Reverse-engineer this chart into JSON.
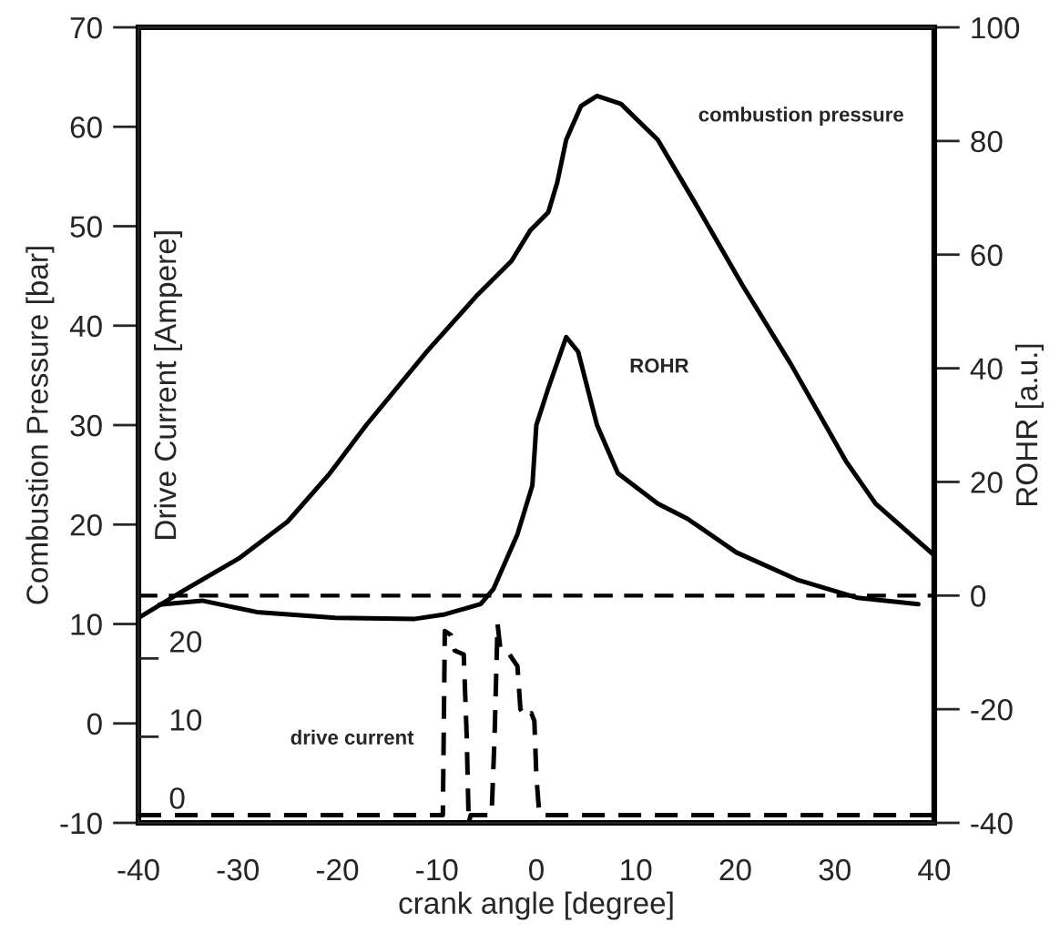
{
  "chart_data": {
    "type": "line",
    "xlabel": "crank angle [degree]",
    "ylabel": "Combustion Pressure [bar]",
    "y2label": "ROHR [a.u.]",
    "y3label": "Drive Current [Ampere]",
    "xlim": [
      -40,
      40
    ],
    "xticks": [
      -40,
      -30,
      -20,
      -10,
      0,
      10,
      20,
      30,
      40
    ],
    "ylim": [
      -10,
      70
    ],
    "yticks": [
      -10,
      0,
      10,
      20,
      30,
      40,
      50,
      60,
      70
    ],
    "y2lim": [
      -40,
      100
    ],
    "y2ticks": [
      -40,
      -20,
      0,
      20,
      40,
      60,
      80,
      100
    ],
    "y3lim": [
      -1,
      100.6
    ],
    "y3ticks": [
      0,
      10,
      20
    ],
    "grid": false,
    "legend": false,
    "marker": "none",
    "ref_lines": [
      {
        "axis": "y2",
        "value": 0,
        "line_style": "dashed",
        "color": "#000000"
      }
    ],
    "series": [
      {
        "name": "combustion pressure",
        "color": "#000000",
        "line_style": "solid",
        "x": [
          -40,
          -35.4,
          -29.9,
          -25.0,
          -20.8,
          -17.1,
          -11.0,
          -6.1,
          -2.5,
          -0.6,
          1.2,
          2.1,
          3.0,
          4.5,
          6.1,
          8.5,
          12.2,
          15.8,
          20.7,
          25.6,
          31.1,
          34.1,
          40
        ],
        "values": [
          10.6,
          13.4,
          16.6,
          20.3,
          25.1,
          30.0,
          37.4,
          42.9,
          46.5,
          49.6,
          51.4,
          54.4,
          58.7,
          62.1,
          63.1,
          62.3,
          58.7,
          52.6,
          44.1,
          36.1,
          26.4,
          22.1,
          16.9
        ]
      },
      {
        "name": "ROHR",
        "axis": "y2",
        "color": "#000000",
        "line_style": "solid",
        "x": [
          -37.9,
          -33.6,
          -28.1,
          -20.2,
          -12.2,
          -9.2,
          -5.6,
          -4.3,
          -1.9,
          -0.4,
          0.0,
          1.2,
          3.0,
          4.2,
          6.1,
          8.2,
          12.2,
          15.2,
          20.1,
          26.2,
          32.3,
          38.4
        ],
        "values": [
          -1.6,
          -0.9,
          -2.9,
          -3.9,
          -4.1,
          -3.3,
          -1.5,
          1.2,
          10.8,
          19.4,
          30.0,
          36.5,
          45.5,
          42.9,
          30.0,
          21.5,
          16.2,
          13.5,
          7.6,
          2.8,
          -0.4,
          -1.5
        ]
      },
      {
        "name": "drive current",
        "axis": "y3",
        "color": "#000000",
        "line_style": "dashed",
        "x": [
          -40,
          -9.4,
          -9.2,
          -8.6,
          -8.2,
          -7.3,
          -7.0,
          -6.8,
          -6.6,
          -4.5,
          -4.2,
          -3.9,
          -3.6,
          -2.7,
          -1.9,
          -1.6,
          -1.0,
          -0.5,
          -0.2,
          0.0,
          0.3,
          40
        ],
        "values": [
          0,
          0,
          23.5,
          23,
          21,
          20.5,
          10,
          -1,
          0,
          0,
          10,
          24.4,
          21,
          20.5,
          19,
          13.5,
          12.5,
          13,
          12,
          5,
          0,
          0
        ]
      }
    ]
  }
}
